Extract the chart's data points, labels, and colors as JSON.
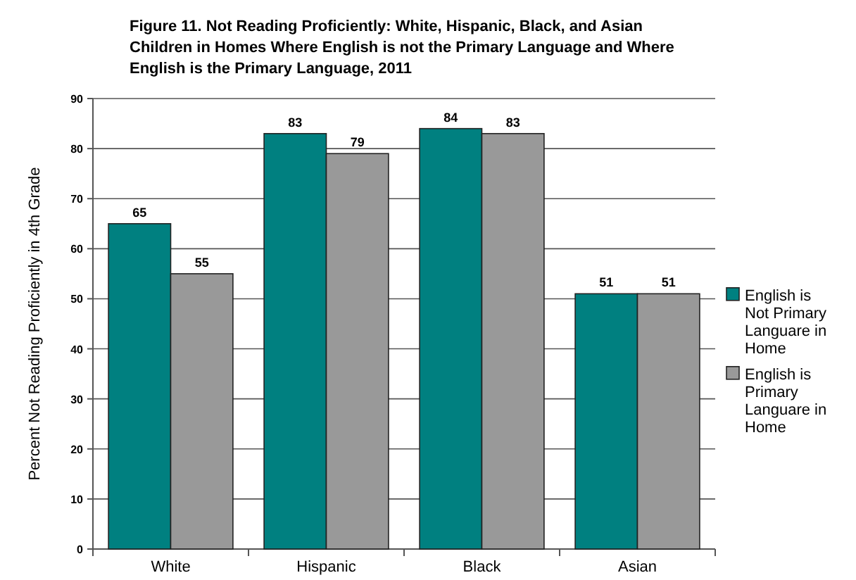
{
  "chart_data": {
    "type": "bar",
    "title": "Figure 11. Not Reading Proficiently: White, Hispanic, Black, and Asian Children in Homes Where English is not the Primary Language and Where English is the Primary Language, 2011",
    "ylabel": "Percent Not Reading Proficiently in 4th Grade",
    "categories": [
      "White",
      "Hispanic",
      "Black",
      "Asian"
    ],
    "series": [
      {
        "name": "English is Not Primary Languare in Home",
        "color": "#008080",
        "values": [
          65,
          83,
          84,
          51
        ]
      },
      {
        "name": "English is Primary Languare in Home",
        "color": "#999999",
        "values": [
          55,
          79,
          83,
          51
        ]
      }
    ],
    "ylim": [
      0,
      90
    ],
    "yticks": [
      0,
      10,
      20,
      30,
      40,
      50,
      60,
      70,
      80,
      90
    ],
    "grid": "y",
    "legend": "right",
    "data_labels": true
  }
}
